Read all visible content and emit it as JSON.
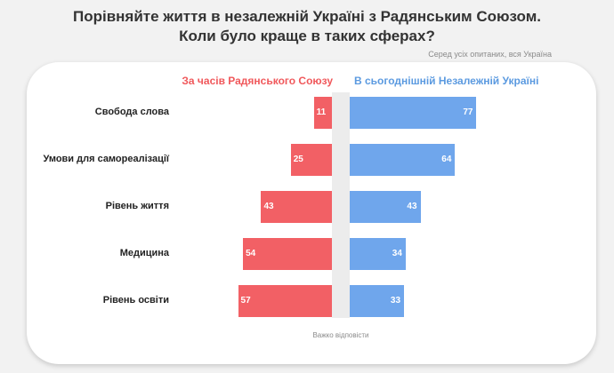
{
  "title_line1": "Порівняйте життя в незалежній Україні з Радянським Союзом.",
  "title_line2": "Коли було краще в таких сферах?",
  "subtitle": "Серед усіх опитаних, вся Україна",
  "center_label": "Важко відповісти",
  "colors": {
    "soviet": "#f26065",
    "independent": "#6fa6ec",
    "no_answer_band": "#ececec"
  },
  "chart_data": {
    "type": "bar",
    "orientation": "horizontal-diverging",
    "title": "Порівняйте життя в незалежній Україні з Радянським Союзом. Коли було краще в таких сферах?",
    "categories": [
      "Свобода слова",
      "Умови для самореалізації",
      "Рівень життя",
      "Медицина",
      "Рівень освіти"
    ],
    "series": [
      {
        "name": "За часів Радянського Союзу",
        "values": [
          11,
          25,
          43,
          54,
          57
        ]
      },
      {
        "name": "В сьогоднішній Незалежній Україні",
        "values": [
          77,
          64,
          43,
          34,
          33
        ]
      }
    ],
    "center_band_label": "Важко відповісти",
    "grid": false,
    "legend_placement": "top"
  }
}
